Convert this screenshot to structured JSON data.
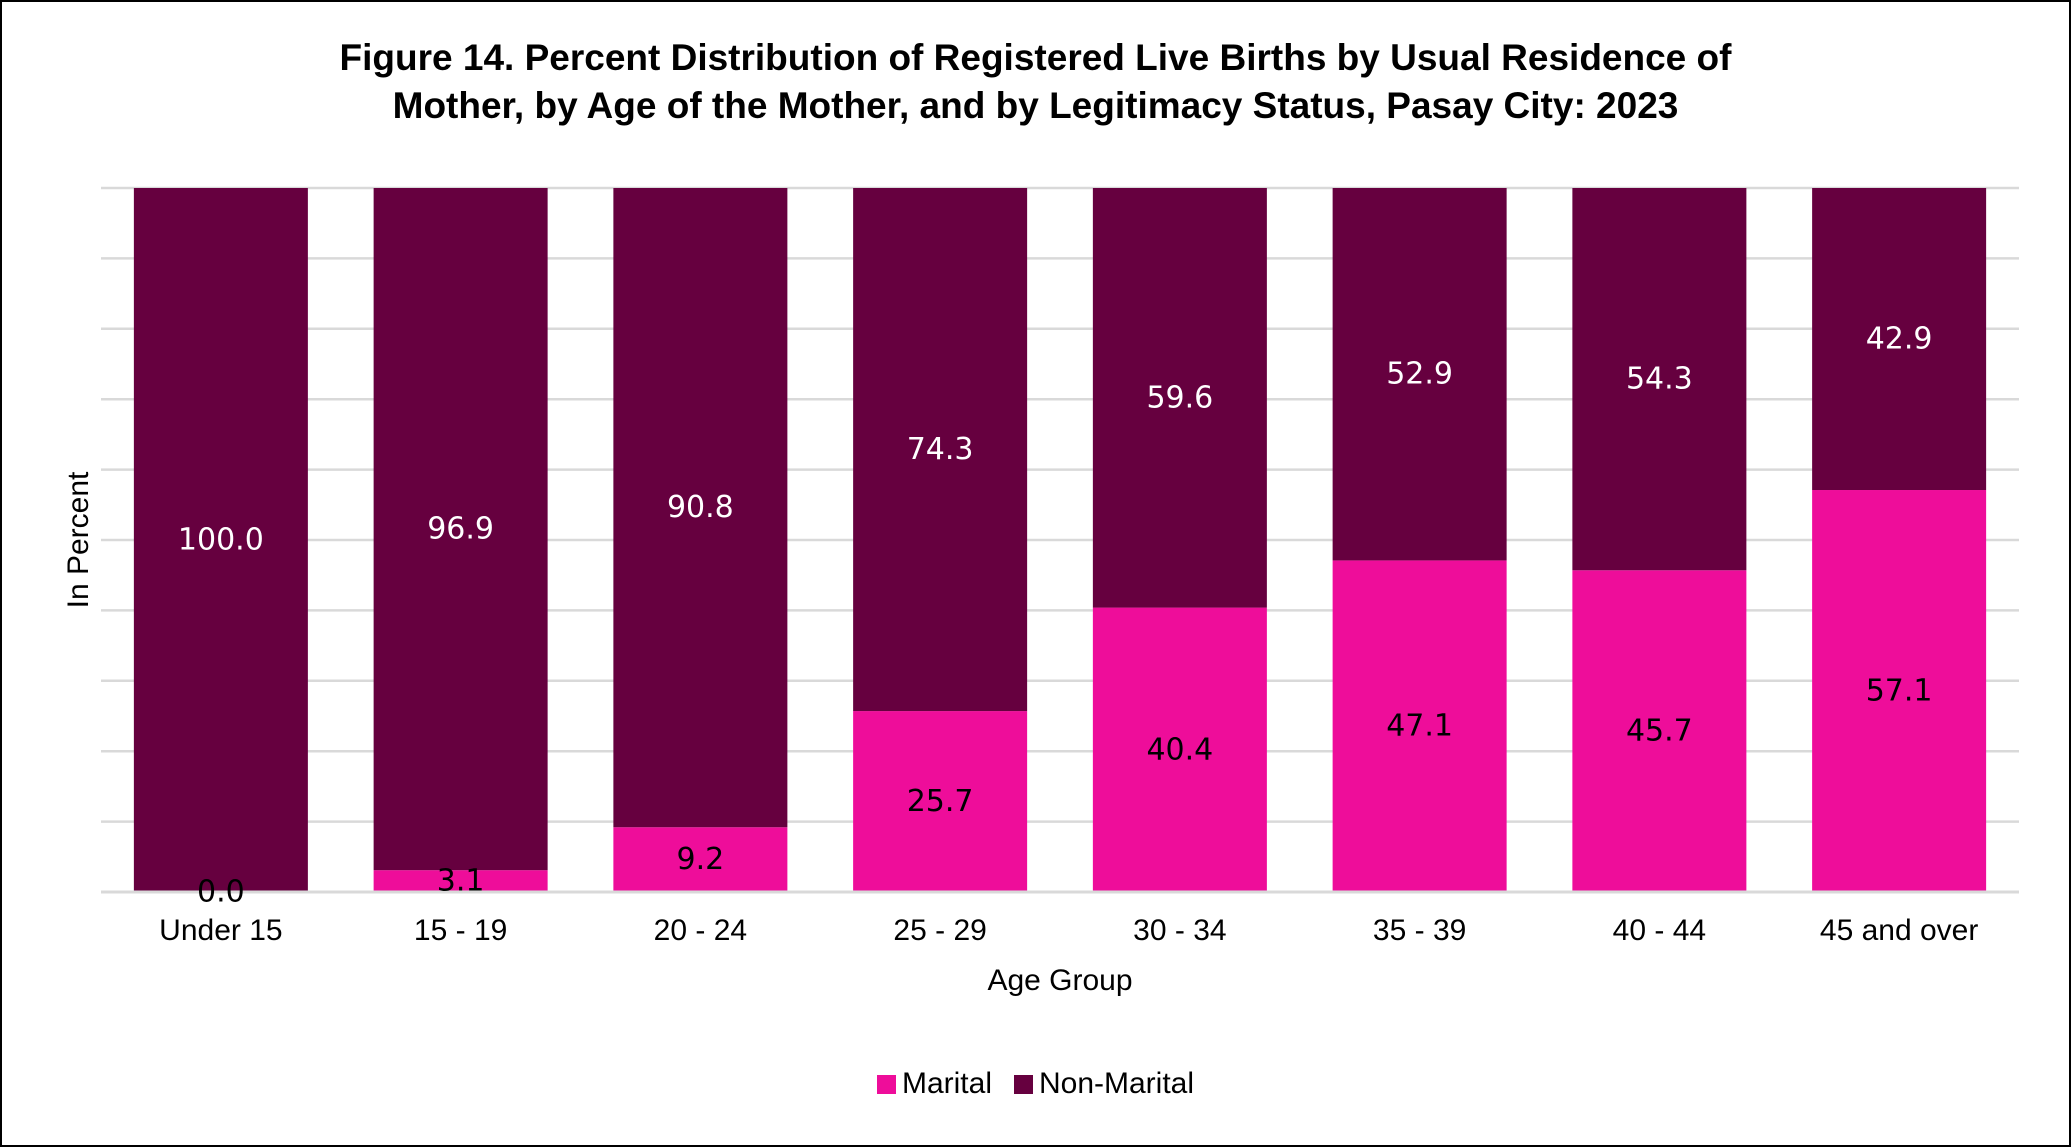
{
  "chart_data": {
    "type": "bar",
    "stacked": true,
    "title_lines": [
      "Figure 14. Percent Distribution of Registered Live Births by Usual Residence of",
      "Mother, by Age of the Mother, and by Legitimacy Status, Pasay City: 2023"
    ],
    "xlabel": "Age Group",
    "ylabel": "In Percent",
    "ylim": [
      0,
      100
    ],
    "grid": true,
    "legend_position": "bottom",
    "categories": [
      "Under 15",
      "15 - 19",
      "20 - 24",
      "25 - 29",
      "30 - 34",
      "35 - 39",
      "40 - 44",
      "45 and over"
    ],
    "series": [
      {
        "name": "Marital",
        "color": "#ee0d9a",
        "label_color": "#000000",
        "values": [
          0.0,
          3.1,
          9.2,
          25.7,
          40.4,
          47.1,
          45.7,
          57.1
        ],
        "labels": [
          "0.0",
          "3.1",
          "9.2",
          "25.7",
          "40.4",
          "47.1",
          "45.7",
          "57.1"
        ]
      },
      {
        "name": "Non-Marital",
        "color": "#66003f",
        "label_color": "#ffffff",
        "values": [
          100.0,
          96.9,
          90.8,
          74.3,
          59.6,
          52.9,
          54.3,
          42.9
        ],
        "labels": [
          "100.0",
          "96.9",
          "90.8",
          "74.3",
          "59.6",
          "52.9",
          "54.3",
          "42.9"
        ]
      }
    ]
  }
}
